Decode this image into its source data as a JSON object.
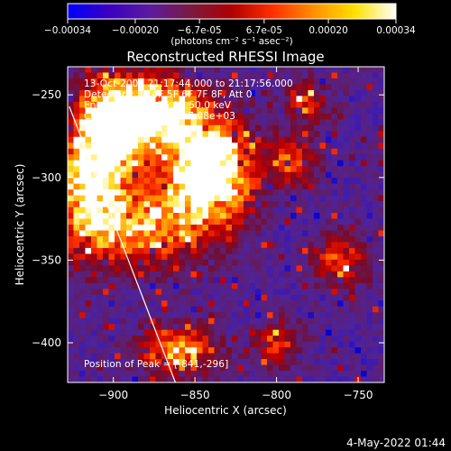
{
  "colorbar": {
    "ticks": [
      {
        "value": -0.00034,
        "label": "-0.00034"
      },
      {
        "value": -0.0002,
        "label": "-0.00020"
      },
      {
        "value": -6.7e-05,
        "label": "-6.7e-05"
      },
      {
        "value": 6.7e-05,
        "label": "6.7e-05"
      },
      {
        "value": 0.0002,
        "label": "0.00020"
      },
      {
        "value": 0.00034,
        "label": "0.00034"
      }
    ],
    "range": [
      -0.00034,
      0.00034
    ],
    "units": "(photons cm⁻² s⁻¹ asec⁻²)",
    "colors": [
      "#0000ff",
      "#3a00c0",
      "#5d1aa0",
      "#7a1a40",
      "#b00000",
      "#ff3000",
      "#ff9000",
      "#ffe000",
      "#ffffff"
    ]
  },
  "chart_data": {
    "type": "heatmap",
    "title": "Reconstructed RHESSI Image",
    "xlabel": "Heliocentric X (arcsec)",
    "ylabel": "Heliocentric Y (arcsec)",
    "xlim": [
      -928,
      -734
    ],
    "ylim": [
      -424,
      -233
    ],
    "xticks": [
      -900,
      -850,
      -800,
      -750
    ],
    "yticks": [
      -400,
      -350,
      -300,
      -250
    ],
    "xtick_labels": [
      "−900",
      "−850",
      "−800",
      "−750"
    ],
    "ytick_labels": [
      "−400",
      "−350",
      "−300",
      "−250"
    ],
    "annotations": [
      "13-Oct-2004 21:17:44.000 to 21:17:56.000",
      "Detectors: 3F 4F 5F 6F 7F 8F, Att 0",
      "Energy Range: 25.0 - 50.0 keV",
      "Clean    Total counts: 7.08e+03"
    ],
    "peak_label": "Position of Peak = [-841,-296]",
    "peak": {
      "x": -841,
      "y": -296
    },
    "limb_line": [
      {
        "x": -927,
        "y": -257
      },
      {
        "x": -862,
        "y": -424
      }
    ],
    "sources": [
      {
        "x": -841,
        "y": -296,
        "sx": 18,
        "sy": 22,
        "amp": 1.05
      },
      {
        "x": -870,
        "y": -260,
        "sx": 16,
        "sy": 14,
        "amp": 0.75
      },
      {
        "x": -900,
        "y": -268,
        "sx": 16,
        "sy": 20,
        "amp": 0.85
      },
      {
        "x": -915,
        "y": -310,
        "sx": 14,
        "sy": 26,
        "amp": 0.7
      },
      {
        "x": -880,
        "y": -330,
        "sx": 22,
        "sy": 18,
        "amp": 0.55
      },
      {
        "x": -860,
        "y": -405,
        "sx": 16,
        "sy": 10,
        "amp": 0.65
      },
      {
        "x": -790,
        "y": -290,
        "sx": 10,
        "sy": 10,
        "amp": 0.45
      },
      {
        "x": -800,
        "y": -400,
        "sx": 10,
        "sy": 10,
        "amp": 0.4
      },
      {
        "x": -760,
        "y": -350,
        "sx": 12,
        "sy": 12,
        "amp": 0.4
      },
      {
        "x": -780,
        "y": -255,
        "sx": 10,
        "sy": 10,
        "amp": 0.35
      }
    ]
  },
  "footer": {
    "date": "4-May-2022 01:44"
  }
}
